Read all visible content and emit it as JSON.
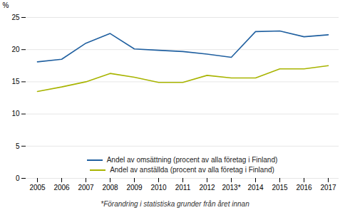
{
  "chart_data": {
    "type": "line",
    "categories": [
      "2005",
      "2006",
      "2007",
      "2008",
      "2009",
      "2010",
      "2011",
      "2012",
      "2013*",
      "2014",
      "2015",
      "2016",
      "2017"
    ],
    "series": [
      {
        "name": "Andel av omsättning (procent av alla företag i Finland)",
        "color": "#2060a0",
        "values": [
          18.1,
          18.5,
          21.0,
          22.5,
          20.1,
          19.9,
          19.7,
          19.3,
          18.8,
          22.8,
          22.9,
          22.0,
          22.3
        ]
      },
      {
        "name": "Andel av anställda (procent av alla företag i Finland)",
        "color": "#a8b400",
        "values": [
          13.5,
          14.2,
          15.0,
          16.3,
          15.7,
          14.9,
          14.9,
          16.0,
          15.6,
          15.6,
          17.0,
          17.0,
          17.5
        ]
      }
    ],
    "ylabel": "%",
    "ylim": [
      0,
      25
    ],
    "yticks": [
      0,
      5,
      10,
      15,
      20,
      25
    ],
    "grid": true,
    "legend": "lower center",
    "footnote": "*Förandring i statistiska grunder från året innan"
  }
}
